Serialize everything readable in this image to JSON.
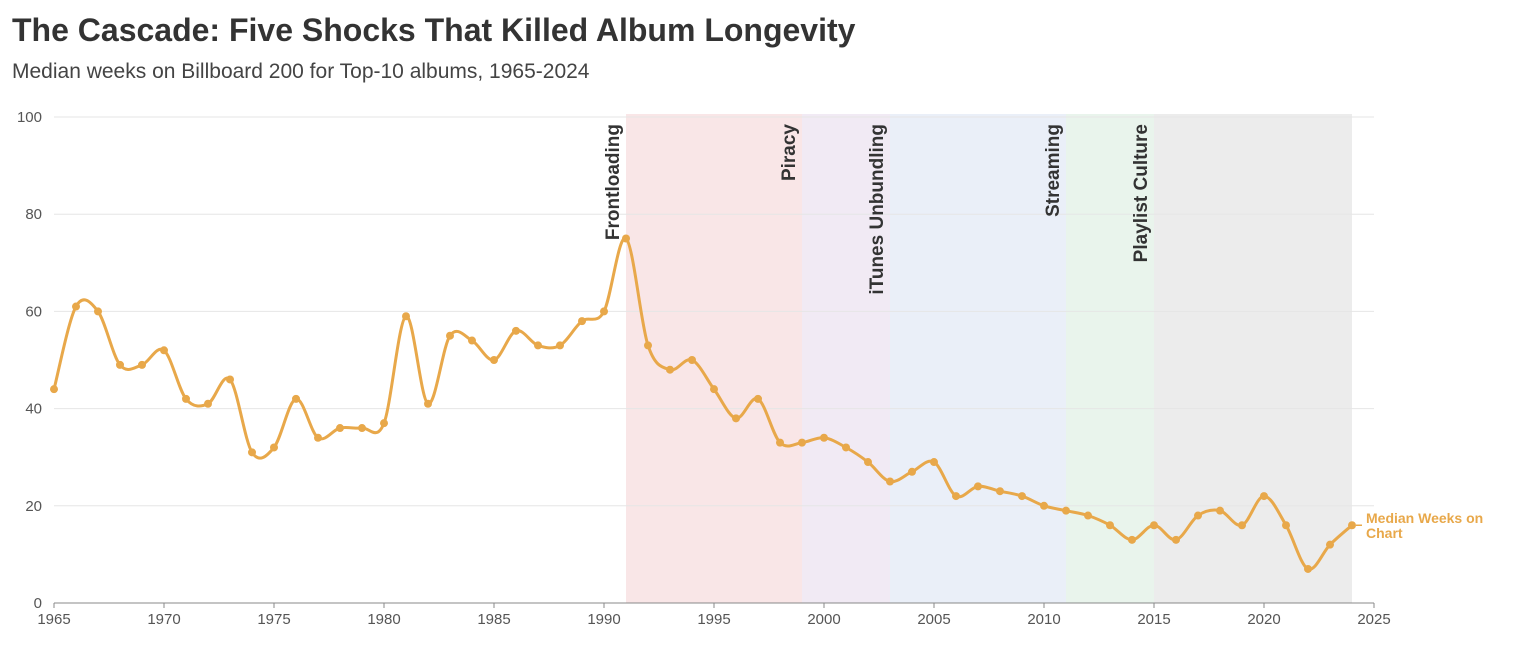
{
  "title": "The Cascade: Five Shocks That Killed Album Longevity",
  "subtitle": "Median weeks on Billboard 200 for Top-10 albums, 1965-2024",
  "colors": {
    "line": "#E8A84A",
    "grid": "#e6e6e6",
    "axis": "#888888"
  },
  "chart_data": {
    "type": "line",
    "title": "The Cascade: Five Shocks That Killed Album Longevity",
    "subtitle": "Median weeks on Billboard 200 for Top-10 albums, 1965-2024",
    "xlabel": "",
    "ylabel": "",
    "xlim": [
      1965,
      2025
    ],
    "ylim": [
      0,
      100
    ],
    "x_ticks": [
      1965,
      1970,
      1975,
      1980,
      1985,
      1990,
      1995,
      2000,
      2005,
      2010,
      2015,
      2020,
      2025
    ],
    "y_ticks": [
      0,
      20,
      40,
      60,
      80,
      100
    ],
    "grid": "horizontal",
    "series": [
      {
        "name": "Median Weeks on Chart",
        "color": "#E8A84A",
        "x": [
          1965,
          1966,
          1967,
          1968,
          1969,
          1970,
          1971,
          1972,
          1973,
          1974,
          1975,
          1976,
          1977,
          1978,
          1979,
          1980,
          1981,
          1982,
          1983,
          1984,
          1985,
          1986,
          1987,
          1988,
          1989,
          1990,
          1991,
          1992,
          1993,
          1994,
          1995,
          1996,
          1997,
          1998,
          1999,
          2000,
          2001,
          2002,
          2003,
          2004,
          2005,
          2006,
          2007,
          2008,
          2009,
          2010,
          2011,
          2012,
          2013,
          2014,
          2015,
          2016,
          2017,
          2018,
          2019,
          2020,
          2021,
          2022,
          2023,
          2024
        ],
        "values": [
          44,
          61,
          60,
          49,
          49,
          52,
          42,
          41,
          46,
          31,
          32,
          42,
          34,
          36,
          36,
          37,
          59,
          41,
          55,
          54,
          50,
          56,
          53,
          53,
          58,
          60,
          75,
          53,
          48,
          50,
          44,
          38,
          42,
          33,
          33,
          34,
          32,
          29,
          25,
          27,
          29,
          22,
          24,
          23,
          22,
          20,
          19,
          18,
          16,
          13,
          16,
          13,
          18,
          19,
          16,
          22,
          16,
          7,
          12,
          16
        ]
      }
    ],
    "periods": [
      {
        "label": "Frontloading",
        "start": 1991,
        "end": 1999,
        "color": "#f9e6e7"
      },
      {
        "label": "Piracy",
        "start": 1999,
        "end": 2003,
        "color": "#f1eaf4"
      },
      {
        "label": "iTunes Unbundling",
        "start": 2003,
        "end": 2011,
        "color": "#eaeff8"
      },
      {
        "label": "Streaming",
        "start": 2011,
        "end": 2015,
        "color": "#e9f4ec"
      },
      {
        "label": "Playlist Culture",
        "start": 2015,
        "end": 2024,
        "color": "#ececec"
      }
    ],
    "event_labels": [
      {
        "text": "Frontloading",
        "year": 1991
      },
      {
        "text": "Piracy",
        "year": 1999
      },
      {
        "text": "iTunes Unbundling",
        "year": 2003
      },
      {
        "text": "Streaming",
        "year": 2011
      },
      {
        "text": "Playlist Culture",
        "year": 2015
      }
    ],
    "series_end_label": [
      "Median Weeks on",
      "Chart"
    ]
  }
}
